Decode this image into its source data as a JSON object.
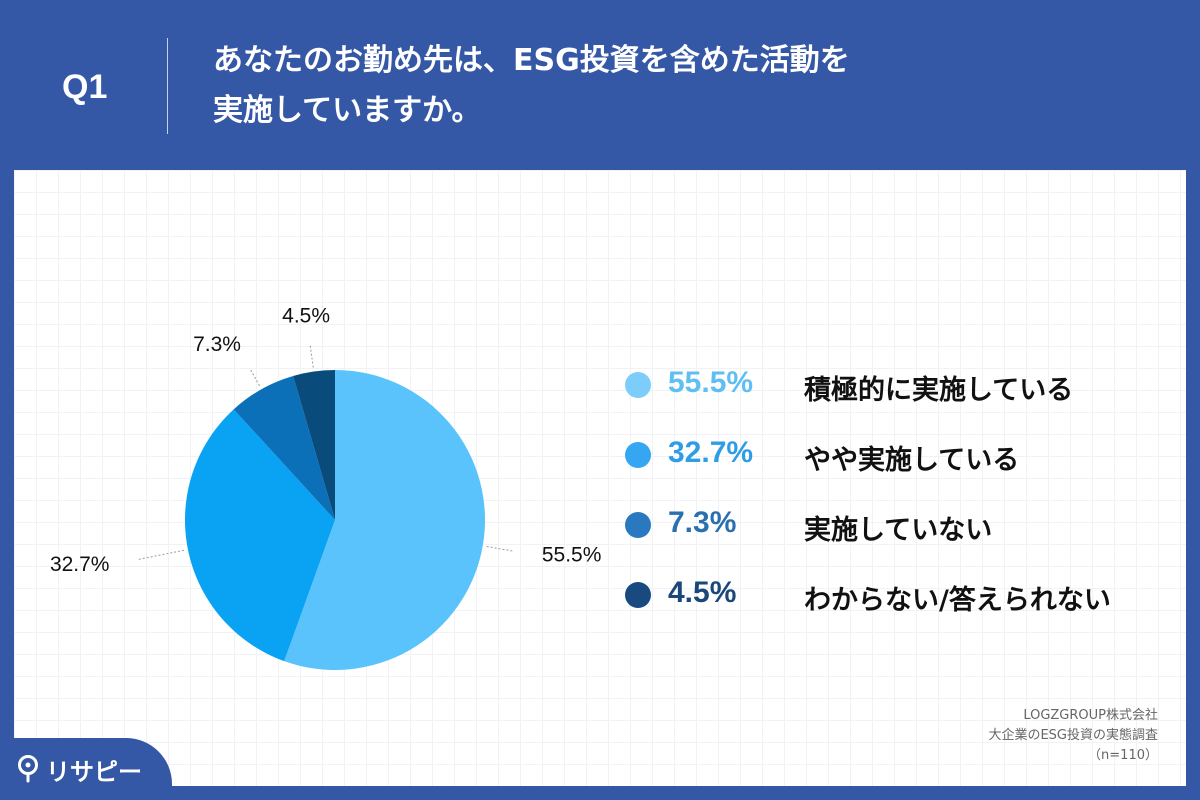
{
  "header": {
    "q_label": "Q1",
    "title_line1": "あなたのお勤め先は、ESG投資を含めた活動を",
    "title_line2": "実施していますか。"
  },
  "chart_data": {
    "type": "pie",
    "title": "",
    "categories": [
      "積極的に実施している",
      "やや実施している",
      "実施していない",
      "わからない/答えられない"
    ],
    "values": [
      55.5,
      32.7,
      7.3,
      4.5
    ],
    "labels": [
      "55.5%",
      "32.7%",
      "7.3%",
      "4.5%"
    ],
    "colors": [
      "#5bc3fb",
      "#0aa2f2",
      "#0b70b8",
      "#094c7c"
    ],
    "legend_position": "right",
    "start": "top",
    "direction": "clockwise"
  },
  "legend": {
    "items": [
      {
        "pct": "55.5%",
        "label": "積極的に実施している",
        "dot_color": "#7ccdfa",
        "text_color": "#5fbff2"
      },
      {
        "pct": "32.7%",
        "label": "やや実施している",
        "dot_color": "#35a6f2",
        "text_color": "#2f9de6"
      },
      {
        "pct": "7.3%",
        "label": "実施していない",
        "dot_color": "#2a78bf",
        "text_color": "#2a6fb0"
      },
      {
        "pct": "4.5%",
        "label": "わからない/答えられない",
        "dot_color": "#18497f",
        "text_color": "#1b477a"
      }
    ]
  },
  "source": {
    "line1": "LOGZGROUP株式会社",
    "line2": "大企業のESG投資の実態調査",
    "line3": "（n=110）"
  },
  "logo": {
    "text": "リサピー"
  }
}
